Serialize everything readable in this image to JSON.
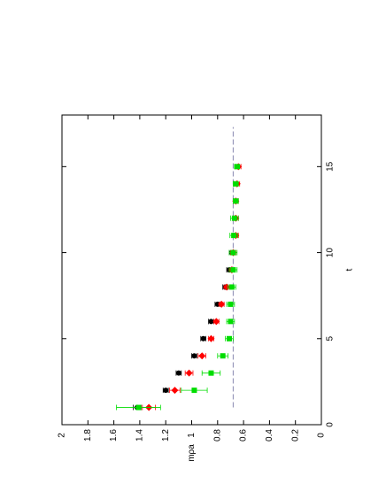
{
  "chart_data": {
    "type": "scatter",
    "xlabel": "t",
    "ylabel": "mρa",
    "xlim": [
      0,
      18
    ],
    "xticks": [
      0,
      5,
      10,
      15
    ],
    "ylim": [
      0,
      2
    ],
    "yticks": [
      0,
      0.2,
      0.4,
      0.6,
      0.8,
      1,
      1.2,
      1.4,
      1.6,
      1.8,
      2
    ],
    "fit": {
      "value": 0.68,
      "x": [
        1,
        17.3
      ],
      "color": "#8a8ab0"
    },
    "series": [
      {
        "color": "#000000",
        "marker": "circle",
        "x": [
          1,
          2,
          3,
          4,
          5,
          6,
          7,
          8,
          9,
          10
        ],
        "values": [
          1.42,
          1.2,
          1.1,
          0.98,
          0.91,
          0.85,
          0.8,
          0.74,
          0.71,
          0.69
        ],
        "errors": [
          0.03,
          0.02,
          0.02,
          0.02,
          0.02,
          0.02,
          0.02,
          0.02,
          0.02,
          0.02
        ]
      },
      {
        "color": "#ff0000",
        "marker": "diamond",
        "x": [
          1,
          2,
          3,
          4,
          5,
          6,
          7,
          8,
          9,
          10,
          11,
          12,
          13,
          14,
          15
        ],
        "values": [
          1.33,
          1.13,
          1.02,
          0.92,
          0.85,
          0.81,
          0.77,
          0.73,
          0.69,
          0.68,
          0.66,
          0.66,
          0.66,
          0.65,
          0.64
        ],
        "errors": [
          0.05,
          0.04,
          0.03,
          0.03,
          0.02,
          0.02,
          0.02,
          0.02,
          0.02,
          0.02,
          0.02,
          0.02,
          0.02,
          0.02,
          0.02
        ]
      },
      {
        "color": "#00dd00",
        "marker": "square",
        "x": [
          1,
          2,
          3,
          4,
          5,
          6,
          7,
          8,
          9,
          10,
          11,
          12,
          13,
          14,
          15
        ],
        "values": [
          1.41,
          0.98,
          0.85,
          0.76,
          0.71,
          0.7,
          0.7,
          0.69,
          0.68,
          0.68,
          0.675,
          0.67,
          0.66,
          0.66,
          0.65
        ],
        "errors": [
          0.17,
          0.1,
          0.07,
          0.04,
          0.03,
          0.03,
          0.03,
          0.03,
          0.03,
          0.03,
          0.03,
          0.03,
          0.02,
          0.02,
          0.02
        ]
      }
    ]
  }
}
